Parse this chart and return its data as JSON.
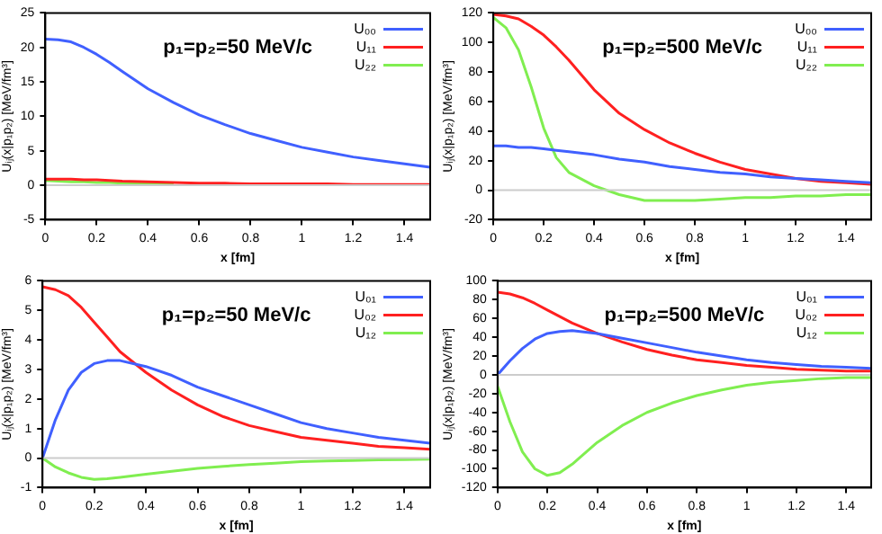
{
  "chart_data": [
    {
      "type": "line",
      "title": "p₁=p₂=50 MeV/c",
      "xlabel": "x [fm]",
      "ylabel": "Uᵢⱼ(x|p₁p₂) [MeV/fm³]",
      "legend": "top right",
      "x": [
        0,
        0.05,
        0.1,
        0.15,
        0.2,
        0.25,
        0.3,
        0.4,
        0.5,
        0.6,
        0.7,
        0.8,
        0.9,
        1.0,
        1.1,
        1.2,
        1.3,
        1.4,
        1.5
      ],
      "xlim": [
        0,
        1.5
      ],
      "xticks": [
        0,
        0.2,
        0.4,
        0.6,
        0.8,
        1,
        1.2,
        1.4
      ],
      "ylim": [
        -5,
        25
      ],
      "yticks": [
        -5,
        0,
        5,
        10,
        15,
        20,
        25
      ],
      "ref_lines": [
        {
          "axis": "y",
          "value": 0,
          "color": "#cccccc"
        }
      ],
      "series": [
        {
          "name": "U₀₀",
          "color": "#4060ff",
          "values": [
            21.2,
            21.1,
            20.8,
            20,
            19,
            17.8,
            16.5,
            14,
            12,
            10.2,
            8.8,
            7.5,
            6.5,
            5.5,
            4.8,
            4.1,
            3.6,
            3.1,
            2.6
          ]
        },
        {
          "name": "U₁₁",
          "color": "#ff2020",
          "values": [
            0.9,
            0.9,
            0.9,
            0.8,
            0.8,
            0.7,
            0.6,
            0.5,
            0.4,
            0.3,
            0.3,
            0.2,
            0.2,
            0.2,
            0.2,
            0.1,
            0.1,
            0.1,
            0.1
          ]
        },
        {
          "name": "U₂₂",
          "color": "#80ee50",
          "values": [
            0.7,
            0.6,
            0.5,
            0.5,
            0.4,
            0.4,
            0.3,
            0.2,
            0.2,
            null,
            null,
            null,
            null,
            null,
            null,
            null,
            null,
            null,
            null
          ]
        }
      ]
    },
    {
      "type": "line",
      "title": "p₁=p₂=500 MeV/c",
      "xlabel": "x [fm]",
      "ylabel": "Uᵢⱼ(x|p₁p₂) [MeV/fm³]",
      "legend": "top right",
      "x": [
        0,
        0.05,
        0.1,
        0.15,
        0.2,
        0.25,
        0.3,
        0.4,
        0.5,
        0.6,
        0.7,
        0.8,
        0.9,
        1.0,
        1.1,
        1.2,
        1.3,
        1.4,
        1.5
      ],
      "xlim": [
        0,
        1.5
      ],
      "xticks": [
        0,
        0.2,
        0.4,
        0.6,
        0.8,
        1,
        1.2,
        1.4
      ],
      "ylim": [
        -20,
        120
      ],
      "yticks": [
        -20,
        0,
        20,
        40,
        60,
        80,
        100,
        120
      ],
      "ref_lines": [
        {
          "axis": "y",
          "value": 0,
          "color": "#cccccc"
        }
      ],
      "series": [
        {
          "name": "U₀₀",
          "color": "#4060ff",
          "values": [
            30,
            30,
            29,
            29,
            28,
            27,
            26,
            24,
            21,
            19,
            16,
            14,
            12,
            11,
            9,
            8,
            7,
            6,
            5
          ]
        },
        {
          "name": "U₁₁",
          "color": "#ff2020",
          "values": [
            119,
            118,
            116,
            111,
            105,
            97,
            88,
            68,
            52,
            41,
            32,
            25,
            19,
            14,
            11,
            8,
            6,
            5,
            4
          ]
        },
        {
          "name": "U₂₂",
          "color": "#80ee50",
          "values": [
            117,
            110,
            95,
            70,
            42,
            22,
            12,
            3,
            -3,
            -7,
            -7,
            -7,
            -6,
            -5,
            -5,
            -4,
            -4,
            -3,
            -3
          ]
        }
      ]
    },
    {
      "type": "line",
      "title": "p₁=p₂=50 MeV/c",
      "xlabel": "x [fm]",
      "ylabel": "Uᵢⱼ(x|p₁p₂) [MeV/fm³]",
      "legend": "top right",
      "x": [
        0,
        0.05,
        0.1,
        0.15,
        0.2,
        0.25,
        0.3,
        0.4,
        0.5,
        0.6,
        0.7,
        0.8,
        0.9,
        1.0,
        1.1,
        1.2,
        1.3,
        1.4,
        1.5
      ],
      "xlim": [
        0,
        1.5
      ],
      "xticks": [
        0,
        0.2,
        0.4,
        0.6,
        0.8,
        1,
        1.2,
        1.4
      ],
      "ylim": [
        -1,
        6
      ],
      "yticks": [
        -1,
        0,
        1,
        2,
        3,
        4,
        5,
        6
      ],
      "ref_lines": [
        {
          "axis": "y",
          "value": 0,
          "color": "#cccccc"
        }
      ],
      "series": [
        {
          "name": "U₀₁",
          "color": "#4060ff",
          "values": [
            0,
            1.3,
            2.3,
            2.9,
            3.2,
            3.3,
            3.3,
            3.1,
            2.8,
            2.4,
            2.1,
            1.8,
            1.5,
            1.2,
            1.0,
            0.85,
            0.7,
            0.6,
            0.5
          ]
        },
        {
          "name": "U₀₂",
          "color": "#ff2020",
          "values": [
            5.8,
            5.7,
            5.5,
            5.1,
            4.6,
            4.1,
            3.6,
            2.9,
            2.3,
            1.8,
            1.4,
            1.1,
            0.9,
            0.7,
            0.6,
            0.5,
            0.4,
            0.35,
            0.3
          ]
        },
        {
          "name": "U₁₂",
          "color": "#80ee50",
          "values": [
            0,
            -0.3,
            -0.5,
            -0.65,
            -0.72,
            -0.7,
            -0.65,
            -0.55,
            -0.45,
            -0.35,
            -0.28,
            -0.22,
            -0.17,
            -0.12,
            -0.1,
            -0.08,
            -0.06,
            -0.05,
            -0.04
          ]
        }
      ]
    },
    {
      "type": "line",
      "title": "p₁=p₂=500 MeV/c",
      "xlabel": "x [fm]",
      "ylabel": "Uᵢⱼ(x|p₁p₂) [MeV/fm³]",
      "legend": "top right",
      "x": [
        0,
        0.05,
        0.1,
        0.15,
        0.2,
        0.25,
        0.3,
        0.4,
        0.5,
        0.6,
        0.7,
        0.8,
        0.9,
        1.0,
        1.1,
        1.2,
        1.3,
        1.4,
        1.5
      ],
      "xlim": [
        0,
        1.5
      ],
      "xticks": [
        0,
        0.2,
        0.4,
        0.6,
        0.8,
        1,
        1.2,
        1.4
      ],
      "ylim": [
        -120,
        100
      ],
      "yticks": [
        -120,
        -100,
        -80,
        -60,
        -40,
        -20,
        0,
        20,
        40,
        60,
        80,
        100
      ],
      "ref_lines": [
        {
          "axis": "y",
          "value": 0,
          "color": "#cccccc"
        }
      ],
      "series": [
        {
          "name": "U₀₁",
          "color": "#4060ff",
          "values": [
            0,
            15,
            28,
            38,
            44,
            46,
            47,
            44,
            39,
            34,
            29,
            24,
            20,
            16,
            13,
            11,
            9,
            8,
            7
          ]
        },
        {
          "name": "U₀₂",
          "color": "#ff2020",
          "values": [
            88,
            86,
            82,
            76,
            69,
            62,
            55,
            44,
            35,
            27,
            21,
            16,
            13,
            10,
            8,
            6,
            5,
            4,
            4
          ]
        },
        {
          "name": "U₁₂",
          "color": "#80ee50",
          "values": [
            -12,
            -50,
            -82,
            -100,
            -107,
            -104,
            -95,
            -72,
            -54,
            -40,
            -30,
            -22,
            -16,
            -11,
            -8,
            -6,
            -4,
            -3,
            -3
          ]
        }
      ]
    }
  ]
}
